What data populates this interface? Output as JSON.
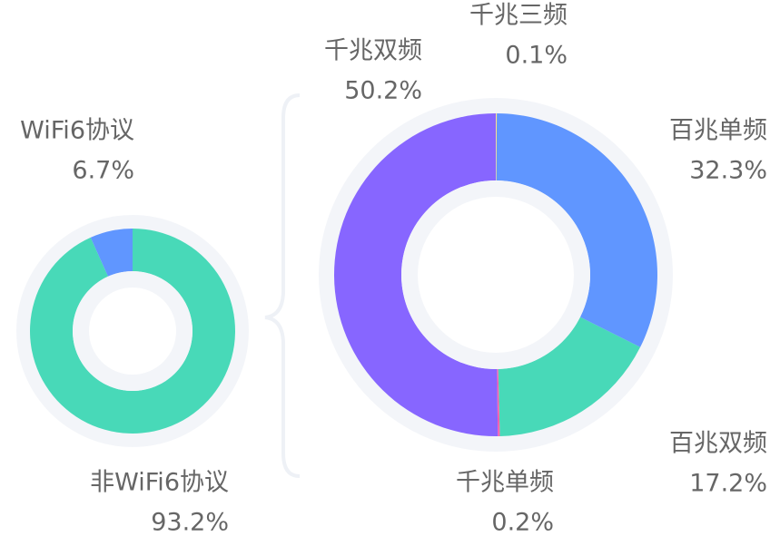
{
  "chart_data": [
    {
      "type": "pie",
      "categories": [
        "非WiFi6协议",
        "WiFi6协议"
      ],
      "values": [
        93.2,
        6.7
      ],
      "value_labels": [
        "93.2%",
        "6.7%"
      ],
      "colors": [
        "#48d9b8",
        "#6096ff"
      ]
    },
    {
      "type": "pie",
      "categories": [
        "千兆三频",
        "百兆单频",
        "百兆双频",
        "千兆单频",
        "千兆双频"
      ],
      "values": [
        0.1,
        32.3,
        17.2,
        0.2,
        50.2
      ],
      "value_labels": [
        "0.1%",
        "32.3%",
        "17.2%",
        "0.2%",
        "50.2%"
      ],
      "colors": [
        "#ffe08a",
        "#6096ff",
        "#48d9b8",
        "#ff5fae",
        "#8766ff"
      ]
    }
  ]
}
